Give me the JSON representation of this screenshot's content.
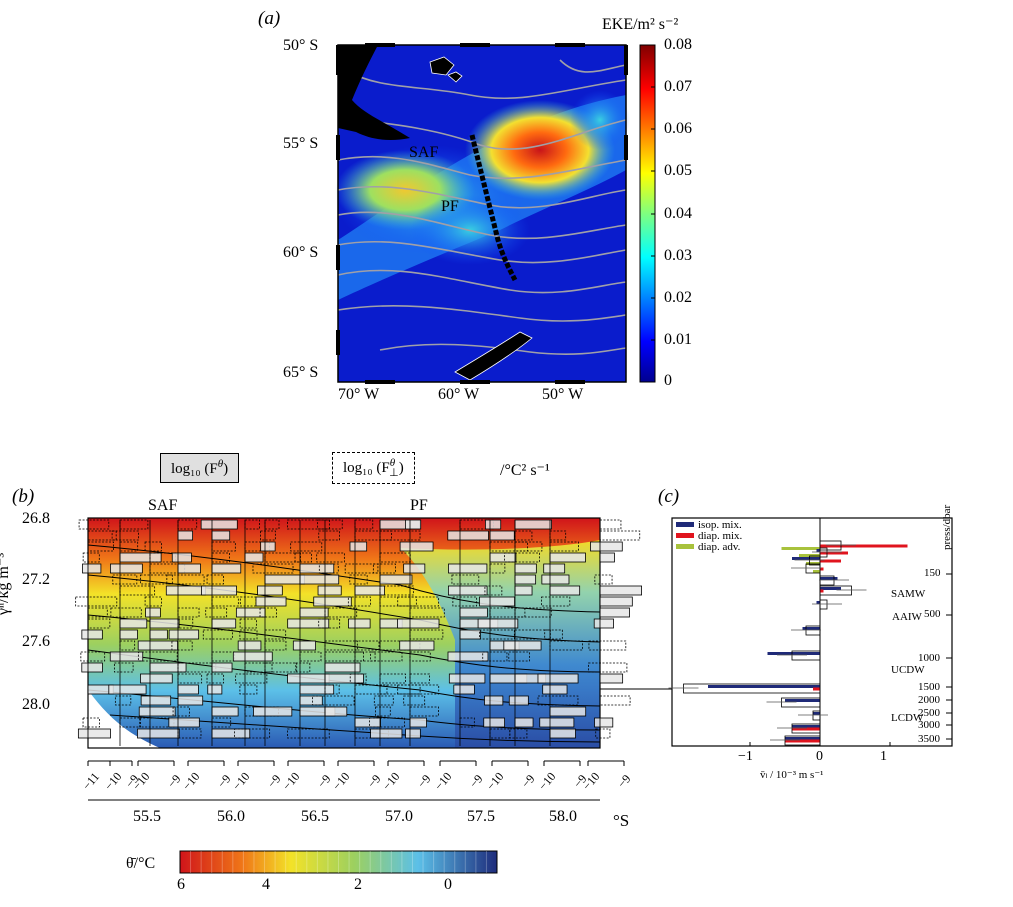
{
  "panel_a": {
    "label": "(a)",
    "colorbar_title": "EKE/m² s⁻²",
    "colorbar_ticks": [
      "0.08",
      "0.07",
      "0.06",
      "0.05",
      "0.04",
      "0.03",
      "0.02",
      "0.01",
      "0"
    ],
    "lat_labels": [
      "50° S",
      "55° S",
      "60° S",
      "65° S"
    ],
    "lon_labels": [
      "70° W",
      "60° W",
      "50° W"
    ],
    "front_labels": [
      "SAF",
      "PF"
    ]
  },
  "panel_b": {
    "label": "(b)",
    "legend_solid": "log₁₀ (F",
    "legend_solid_sup": "θ",
    "legend_dashed": "log₁₀ (F",
    "legend_dashed_sup": "θ",
    "legend_dashed_sub": "⊥",
    "legend_units": "/°C² s⁻¹",
    "ylabel": "γⁿ/kg m⁻³",
    "yticks": [
      "26.8",
      "27.2",
      "27.6",
      "28.0"
    ],
    "front_labels": [
      "SAF",
      "PF"
    ],
    "sub_ticks": [
      "−11",
      "−10",
      "−9"
    ],
    "lat_ticks": [
      "55.5",
      "56.0",
      "56.5",
      "57.0",
      "57.5",
      "58.0"
    ],
    "lat_unit": "°S",
    "colorbar_title": "θ̄/°C",
    "colorbar_ticks": [
      "6",
      "4",
      "2",
      "0"
    ]
  },
  "panel_c": {
    "label": "(c)",
    "legend": [
      "isop. mix.",
      "diap. mix.",
      "diap. adv."
    ],
    "colors": {
      "isop": "#1f2a78",
      "diap_mix": "#e0141e",
      "diap_adv": "#a8c23c"
    },
    "water_masses": [
      "SAMW",
      "AAIW",
      "UCDW",
      "LCDW"
    ],
    "press_ticks": [
      "150",
      "500",
      "1000",
      "1500",
      "2000",
      "2500",
      "3000",
      "3500"
    ],
    "press_label": "press/dbar",
    "xticks": [
      "−1",
      "0",
      "1"
    ],
    "xlabel": "v̄ₗ / 10⁻³ m s⁻¹"
  },
  "chart_data": [
    {
      "type": "heatmap",
      "title": "",
      "colorbar_label": "EKE/m² s⁻²",
      "colorbar_range": [
        0,
        0.08
      ],
      "lat_range": [
        -65,
        -50
      ],
      "lon_range": [
        -70,
        -45
      ],
      "fronts": [
        "SAF",
        "PF"
      ]
    },
    {
      "type": "heatmap",
      "ylabel": "γⁿ/kg m⁻³",
      "ylim": [
        28.3,
        26.75
      ],
      "xlabel": "°S",
      "xlim": [
        55.1,
        58.2
      ],
      "colorbar_label": "θ̄/°C",
      "colorbar_range": [
        -1.5,
        6
      ]
    },
    {
      "type": "bar",
      "orientation": "horizontal",
      "xlabel": "v̄ₗ / 10⁻³ m s⁻¹",
      "xlim": [
        -2.0,
        2.0
      ],
      "ylabel": "press/dbar",
      "series": [
        {
          "name": "isop. mix.",
          "values": [
            0.0,
            -0.05,
            -0.4,
            0.0,
            0.25,
            0.3,
            -0.05,
            -0.25,
            -0.75,
            -1.6,
            -0.5,
            -0.1,
            -0.4,
            -0.5
          ]
        },
        {
          "name": "diap. mix.",
          "values": [
            1.25,
            0.4,
            0.3,
            0.05,
            0.0,
            0.05,
            0.0,
            0.0,
            0.0,
            -0.1,
            0.0,
            0.0,
            -0.4,
            -0.5
          ]
        },
        {
          "name": "diap. adv.",
          "values": [
            -0.55,
            -0.3,
            -0.2,
            -0.1,
            0.0,
            0.0,
            0.0,
            0.0,
            0.0,
            0.0,
            0.0,
            0.0,
            0.0,
            0.0
          ]
        }
      ],
      "net": [
        0.3,
        0.1,
        -0.15,
        -0.2,
        0.2,
        0.45,
        0.1,
        -0.2,
        -0.4,
        -1.95,
        -0.55,
        -0.1,
        -0.4,
        -0.5
      ]
    }
  ]
}
